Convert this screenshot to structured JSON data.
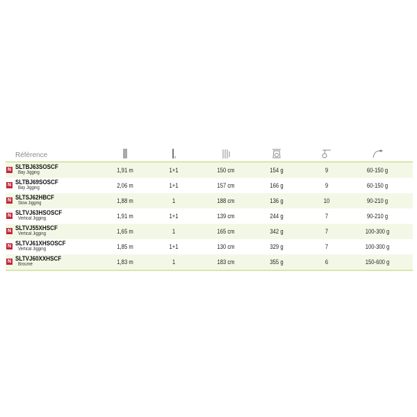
{
  "header": {
    "reference": "Référence",
    "icons": [
      "rod-length-icon",
      "sections-icon",
      "transport-length-icon",
      "weight-icon",
      "rings-icon",
      "lure-weight-icon"
    ],
    "sections_suffix": "x"
  },
  "badge_label": "N",
  "accent": "#d6e6a8",
  "badge_color": "#c0273a",
  "rows": [
    {
      "code": "SLTBJ63SOSCF",
      "type": "Bay Jigging",
      "length": "1,91 m",
      "sections": "1+1",
      "transport": "150 cm",
      "weight": "154 g",
      "rings": "9",
      "lure": "60-150 g"
    },
    {
      "code": "SLTBJ69SOSCF",
      "type": "Bay Jigging",
      "length": "2,06 m",
      "sections": "1+1",
      "transport": "157 cm",
      "weight": "166 g",
      "rings": "9",
      "lure": "60-150 g"
    },
    {
      "code": "SLTSJ62HBCF",
      "type": "Slow Jigging",
      "length": "1,88 m",
      "sections": "1",
      "transport": "188 cm",
      "weight": "136 g",
      "rings": "10",
      "lure": "90-210 g"
    },
    {
      "code": "SLTVJ63HSOSCF",
      "type": "Vertical Jigging",
      "length": "1,91 m",
      "sections": "1+1",
      "transport": "139 cm",
      "weight": "244 g",
      "rings": "7",
      "lure": "90-210 g"
    },
    {
      "code": "SLTVJ55XHSCF",
      "type": "Vertical Jigging",
      "length": "1,65 m",
      "sections": "1",
      "transport": "165 cm",
      "weight": "342 g",
      "rings": "7",
      "lure": "100-300 g"
    },
    {
      "code": "SLTVJ61XHSOSCF",
      "type": "Vertical Jigging",
      "length": "1,85 m",
      "sections": "1+1",
      "transport": "130 cm",
      "weight": "329 g",
      "rings": "7",
      "lure": "100-300 g"
    },
    {
      "code": "SLTVJ60XXHSCF",
      "type": "Broumé",
      "length": "1,83 m",
      "sections": "1",
      "transport": "183 cm",
      "weight": "355 g",
      "rings": "6",
      "lure": "150-600 g"
    }
  ]
}
